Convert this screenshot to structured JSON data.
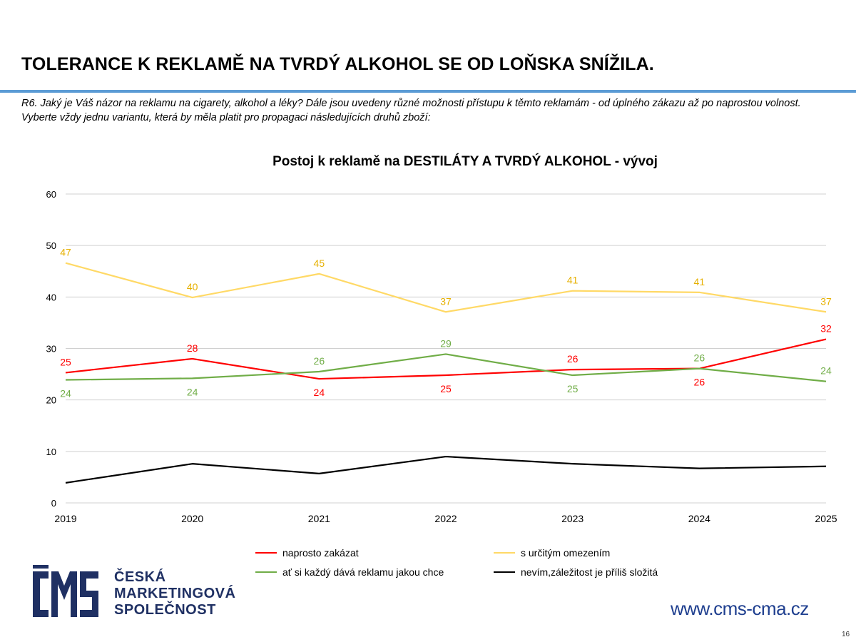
{
  "headline": "TOLERANCE K REKLAMĚ NA TVRDÝ ALKOHOL SE OD LOŇSKA SNÍŽILA.",
  "question": {
    "line1": "R6.  Jaký je Váš názor  na reklamu na cigarety, alkohol a léky? Dále jsou uvedeny různé možnosti přístupu k těmto reklamám - od úplného zákazu až po naprostou volnost.",
    "line2": "Vyberte vždy jednu variantu, která by měla platit pro propagaci následujících druhů zboží:"
  },
  "chart_data": {
    "type": "line",
    "title": "Postoj k reklamě na DESTILÁTY A TVRDÝ ALKOHOL - vývoj",
    "xlabel": "",
    "ylabel": "",
    "x": [
      "2019",
      "2020",
      "2021",
      "2022",
      "2023",
      "2024",
      "2025"
    ],
    "ylim": [
      0,
      60
    ],
    "yticks": [
      0,
      10,
      20,
      30,
      40,
      50,
      60
    ],
    "grid": true,
    "legend_position": "bottom",
    "series": [
      {
        "name": "naprosto zakázat",
        "color": "#ff0000",
        "values": [
          25.3,
          28.0,
          24.1,
          24.8,
          25.9,
          26.1,
          31.8
        ],
        "labels": [
          "25",
          "28",
          "24",
          "25",
          "26",
          "26",
          "32"
        ],
        "label_pos": [
          "above",
          "above",
          "below",
          "below",
          "above",
          "below",
          "above"
        ]
      },
      {
        "name": "s určitým omezením",
        "color": "#ffd966",
        "label_color": "#e6b000",
        "values": [
          46.6,
          39.9,
          44.5,
          37.1,
          41.2,
          40.9,
          37.1
        ],
        "labels": [
          "47",
          "40",
          "45",
          "37",
          "41",
          "41",
          "37"
        ],
        "label_pos": [
          "above",
          "above",
          "above",
          "above",
          "above",
          "above",
          "above"
        ]
      },
      {
        "name": "ať si každý dává reklamu jakou chce",
        "color": "#70ad47",
        "values": [
          23.9,
          24.2,
          25.5,
          28.9,
          24.8,
          26.1,
          23.6
        ],
        "labels": [
          "24",
          "24",
          "26",
          "29",
          "25",
          "26",
          "24"
        ],
        "label_pos": [
          "below",
          "below",
          "above",
          "above",
          "below",
          "above",
          "above"
        ]
      },
      {
        "name": "nevím,záležitost je příliš složitá",
        "color": "#000000",
        "values": [
          3.9,
          7.6,
          5.7,
          9.0,
          7.6,
          6.7,
          7.1
        ],
        "labels": [],
        "label_pos": []
      }
    ]
  },
  "logo": {
    "line1": "ČESKÁ",
    "line2": "MARKETINGOVÁ",
    "line3": "SPOLEČNOST",
    "color": "#1f3063"
  },
  "website": "www.cms-cma.cz",
  "page_number": "16"
}
